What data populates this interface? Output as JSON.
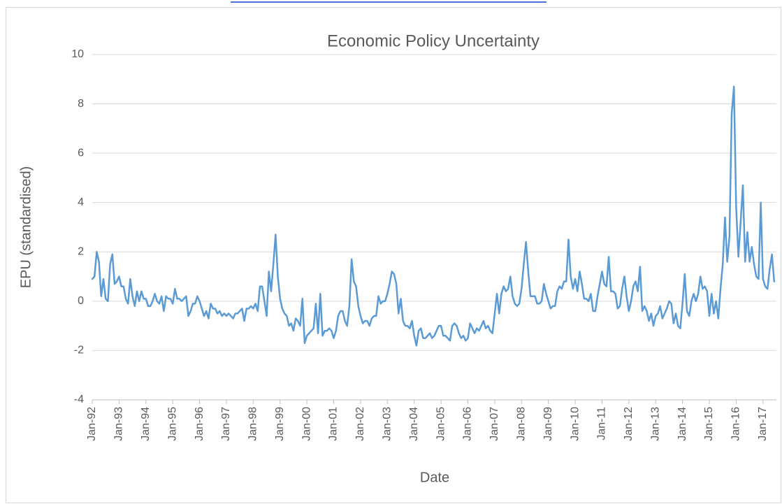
{
  "chart_data": {
    "type": "line",
    "title": "Economic Policy Uncertainty",
    "x_label": "Date",
    "y_label": "EPU (standardised)",
    "ylim": [
      -4,
      10
    ],
    "yticks": [
      -4,
      -2,
      0,
      2,
      4,
      6,
      8,
      10
    ],
    "grid": true,
    "categories": [
      "Jan-92",
      null,
      null,
      null,
      null,
      null,
      null,
      null,
      null,
      null,
      null,
      null,
      "Jan-93",
      null,
      null,
      null,
      null,
      null,
      null,
      null,
      null,
      null,
      null,
      null,
      "Jan-94",
      null,
      null,
      null,
      null,
      null,
      null,
      null,
      null,
      null,
      null,
      null,
      "Jan-95",
      null,
      null,
      null,
      null,
      null,
      null,
      null,
      null,
      null,
      null,
      null,
      "Jan-96",
      null,
      null,
      null,
      null,
      null,
      null,
      null,
      null,
      null,
      null,
      null,
      "Jan-97",
      null,
      null,
      null,
      null,
      null,
      null,
      null,
      null,
      null,
      null,
      null,
      "Jan-98",
      null,
      null,
      null,
      null,
      null,
      null,
      null,
      null,
      null,
      null,
      null,
      "Jan-99",
      null,
      null,
      null,
      null,
      null,
      null,
      null,
      null,
      null,
      null,
      null,
      "Jan-00",
      null,
      null,
      null,
      null,
      null,
      null,
      null,
      null,
      null,
      null,
      null,
      "Jan-01",
      null,
      null,
      null,
      null,
      null,
      null,
      null,
      null,
      null,
      null,
      null,
      "Jan-02",
      null,
      null,
      null,
      null,
      null,
      null,
      null,
      null,
      null,
      null,
      null,
      "Jan-03",
      null,
      null,
      null,
      null,
      null,
      null,
      null,
      null,
      null,
      null,
      null,
      "Jan-04",
      null,
      null,
      null,
      null,
      null,
      null,
      null,
      null,
      null,
      null,
      null,
      "Jan-05",
      null,
      null,
      null,
      null,
      null,
      null,
      null,
      null,
      null,
      null,
      null,
      "Jan-06",
      null,
      null,
      null,
      null,
      null,
      null,
      null,
      null,
      null,
      null,
      null,
      "Jan-07",
      null,
      null,
      null,
      null,
      null,
      null,
      null,
      null,
      null,
      null,
      null,
      "Jan-08",
      null,
      null,
      null,
      null,
      null,
      null,
      null,
      null,
      null,
      null,
      null,
      "Jan-09",
      null,
      null,
      null,
      null,
      null,
      null,
      null,
      null,
      null,
      null,
      null,
      "Jan-10",
      null,
      null,
      null,
      null,
      null,
      null,
      null,
      null,
      null,
      null,
      null,
      "Jan-11",
      null,
      null,
      null,
      null,
      null,
      null,
      null,
      null,
      null,
      null,
      null,
      "Jan-12",
      null,
      null,
      null,
      null,
      null,
      null,
      null,
      null,
      null,
      null,
      null,
      "Jan-13",
      null,
      null,
      null,
      null,
      null,
      null,
      null,
      null,
      null,
      null,
      null,
      "Jan-14",
      null,
      null,
      null,
      null,
      null,
      null,
      null,
      null,
      null,
      null,
      null,
      "Jan-15",
      null,
      null,
      null,
      null,
      null,
      null,
      null,
      null,
      null,
      null,
      null,
      "Jan-16",
      null,
      null,
      null,
      null,
      null,
      null,
      null,
      null,
      null,
      null,
      null,
      "Jan-17",
      null,
      null,
      null,
      null,
      null
    ],
    "series": [
      {
        "color": "#5b9bd5",
        "values": [
          0.9,
          1.0,
          2.0,
          1.6,
          0.2,
          0.9,
          0.1,
          0.0,
          1.5,
          1.9,
          0.7,
          0.8,
          1.0,
          0.6,
          0.6,
          0.1,
          -0.1,
          0.9,
          0.2,
          -0.2,
          0.4,
          0.0,
          0.4,
          0.1,
          0.1,
          -0.2,
          -0.2,
          0.0,
          0.3,
          0.0,
          -0.1,
          0.2,
          -0.4,
          0.2,
          0.1,
          0.1,
          -0.1,
          0.5,
          0.1,
          0.1,
          0.0,
          0.1,
          0.2,
          -0.6,
          -0.4,
          -0.1,
          -0.1,
          0.2,
          0.0,
          -0.3,
          -0.6,
          -0.4,
          -0.7,
          -0.1,
          -0.3,
          -0.3,
          -0.5,
          -0.4,
          -0.6,
          -0.5,
          -0.6,
          -0.5,
          -0.6,
          -0.7,
          -0.5,
          -0.5,
          -0.4,
          -0.3,
          -0.8,
          -0.3,
          -0.3,
          -0.2,
          -0.3,
          -0.1,
          -0.4,
          0.6,
          0.6,
          0.0,
          -0.6,
          1.2,
          0.4,
          1.5,
          2.7,
          1.0,
          0.1,
          -0.3,
          -0.5,
          -0.6,
          -1.0,
          -0.9,
          -1.2,
          -0.7,
          -0.8,
          -1.0,
          0.1,
          -1.7,
          -1.4,
          -1.3,
          -1.2,
          -1.1,
          -0.1,
          -1.3,
          0.3,
          -1.4,
          -1.2,
          -1.2,
          -1.1,
          -1.2,
          -1.5,
          -1.2,
          -0.6,
          -0.4,
          -0.4,
          -0.8,
          -1.0,
          -0.2,
          1.7,
          0.8,
          0.6,
          -0.2,
          -0.6,
          -0.9,
          -0.8,
          -0.8,
          -1.0,
          -0.7,
          -0.6,
          -0.6,
          0.2,
          -0.1,
          0.0,
          0.0,
          0.3,
          0.7,
          1.2,
          1.1,
          0.7,
          -0.5,
          0.1,
          -0.8,
          -1.0,
          -1.0,
          -1.1,
          -0.8,
          -1.4,
          -1.8,
          -1.2,
          -1.1,
          -1.5,
          -1.5,
          -1.4,
          -1.3,
          -1.5,
          -1.4,
          -1.2,
          -1.0,
          -1.0,
          -1.4,
          -1.4,
          -1.5,
          -1.6,
          -1.0,
          -0.9,
          -1.0,
          -1.3,
          -1.5,
          -1.4,
          -1.6,
          -1.5,
          -0.9,
          -1.1,
          -1.3,
          -1.1,
          -1.2,
          -1.0,
          -0.8,
          -1.1,
          -1.0,
          -1.2,
          -1.3,
          -0.5,
          0.3,
          -0.5,
          0.3,
          0.6,
          0.4,
          0.5,
          1.0,
          0.2,
          -0.1,
          -0.2,
          -0.1,
          0.5,
          1.5,
          2.4,
          1.2,
          0.2,
          0.2,
          0.2,
          -0.1,
          -0.1,
          0.0,
          0.7,
          0.3,
          0.0,
          -0.3,
          -0.2,
          -0.2,
          0.4,
          0.6,
          0.5,
          0.8,
          0.8,
          2.5,
          1.0,
          0.5,
          0.9,
          0.4,
          1.2,
          0.7,
          0.1,
          0.1,
          0.0,
          0.3,
          -0.4,
          -0.4,
          0.2,
          0.7,
          1.2,
          0.7,
          0.6,
          1.8,
          0.4,
          0.4,
          0.3,
          -0.3,
          -0.2,
          0.5,
          1.0,
          0.2,
          -0.4,
          0.0,
          0.6,
          0.8,
          0.4,
          1.4,
          -0.4,
          -0.2,
          -0.4,
          -0.8,
          -0.5,
          -1.0,
          -0.6,
          -0.5,
          -0.2,
          -0.7,
          -0.5,
          -0.3,
          0.0,
          -0.1,
          -0.9,
          -0.5,
          -1.0,
          -1.1,
          -0.1,
          1.1,
          -0.4,
          -0.6,
          0.0,
          0.3,
          0.0,
          0.3,
          1.0,
          0.5,
          0.6,
          0.4,
          -0.6,
          0.3,
          -0.5,
          0.0,
          -0.7,
          0.5,
          1.5,
          3.4,
          1.6,
          2.6,
          7.6,
          8.7,
          3.8,
          1.8,
          3.2,
          4.7,
          1.6,
          2.8,
          1.6,
          2.2,
          1.5,
          1.0,
          0.9,
          4.0,
          0.9,
          0.6,
          0.5,
          1.3,
          1.9,
          0.8
        ]
      }
    ]
  }
}
